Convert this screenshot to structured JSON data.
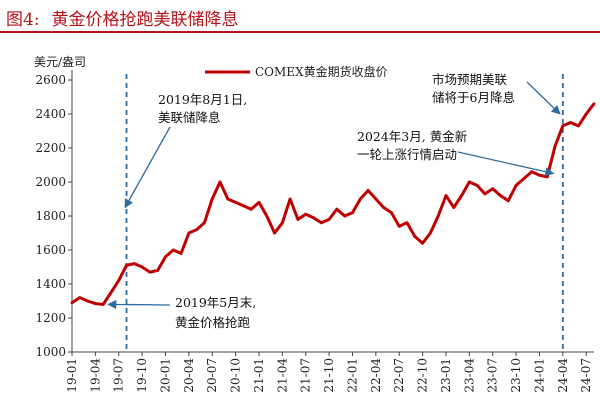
{
  "figure": {
    "number": "图4:",
    "title": "黄金价格抢跑美联储降息"
  },
  "chart_data": {
    "type": "line",
    "title": "黄金价格抢跑美联储降息",
    "ylabel": "美元/盎司",
    "xlabel": "",
    "ylim": [
      1000,
      2600
    ],
    "yticks": [
      1000,
      1200,
      1400,
      1600,
      1800,
      2000,
      2200,
      2400,
      2600
    ],
    "xlim": [
      "2019-01",
      "2024-08"
    ],
    "xtick_labels": [
      "19-01",
      "19-04",
      "19-07",
      "19-10",
      "20-01",
      "20-04",
      "20-07",
      "20-10",
      "21-01",
      "21-04",
      "21-07",
      "21-10",
      "22-01",
      "22-04",
      "22-07",
      "22-10",
      "23-01",
      "23-04",
      "23-07",
      "23-10",
      "24-01",
      "24-04",
      "24-07"
    ],
    "grid": false,
    "legend": "top-center",
    "series": [
      {
        "name": "COMEX黄金期货收盘价",
        "color": "#c00000",
        "x": [
          "2019-01",
          "2019-02",
          "2019-03",
          "2019-04",
          "2019-05",
          "2019-06",
          "2019-07",
          "2019-08",
          "2019-09",
          "2019-10",
          "2019-11",
          "2019-12",
          "2020-01",
          "2020-02",
          "2020-03",
          "2020-04",
          "2020-05",
          "2020-06",
          "2020-07",
          "2020-08",
          "2020-09",
          "2020-10",
          "2020-11",
          "2020-12",
          "2021-01",
          "2021-02",
          "2021-03",
          "2021-04",
          "2021-05",
          "2021-06",
          "2021-07",
          "2021-08",
          "2021-09",
          "2021-10",
          "2021-11",
          "2021-12",
          "2022-01",
          "2022-02",
          "2022-03",
          "2022-04",
          "2022-05",
          "2022-06",
          "2022-07",
          "2022-08",
          "2022-09",
          "2022-10",
          "2022-11",
          "2022-12",
          "2023-01",
          "2023-02",
          "2023-03",
          "2023-04",
          "2023-05",
          "2023-06",
          "2023-07",
          "2023-08",
          "2023-09",
          "2023-10",
          "2023-11",
          "2023-12",
          "2024-01",
          "2024-02",
          "2024-03",
          "2024-04",
          "2024-05",
          "2024-06",
          "2024-07",
          "2024-08"
        ],
        "values": [
          1290,
          1320,
          1300,
          1285,
          1280,
          1350,
          1420,
          1510,
          1520,
          1500,
          1470,
          1480,
          1560,
          1600,
          1580,
          1700,
          1720,
          1760,
          1900,
          2000,
          1900,
          1880,
          1860,
          1840,
          1880,
          1800,
          1700,
          1760,
          1900,
          1780,
          1810,
          1790,
          1760,
          1780,
          1840,
          1800,
          1820,
          1900,
          1950,
          1900,
          1850,
          1820,
          1740,
          1760,
          1680,
          1640,
          1700,
          1800,
          1920,
          1850,
          1920,
          2000,
          1980,
          1930,
          1960,
          1920,
          1890,
          1980,
          2020,
          2060,
          2040,
          2030,
          2210,
          2330,
          2350,
          2330,
          2400,
          2460
        ]
      }
    ],
    "annotations": [
      {
        "text": [
          "2019年8月1日,",
          "美联储降息"
        ],
        "target": [
          "2019-07-25",
          1850
        ]
      },
      {
        "text": [
          "2019年5月末,",
          "黄金价格抢跑"
        ],
        "target": [
          "2019-05-20",
          1280
        ]
      },
      {
        "text": [
          "2024年3月, 黄金新",
          "一轮上涨行情启动"
        ],
        "target": [
          "2024-02-25",
          2050
        ]
      },
      {
        "text": [
          "市场预期美联",
          "储将于6月降息"
        ],
        "target": [
          "2024-03-20",
          2400
        ]
      }
    ],
    "reference_lines": [
      {
        "x": "2019-07-31",
        "style": "dashed",
        "color": "#2e6b9e"
      },
      {
        "x": "2024-03-31",
        "style": "dashed",
        "color": "#2e6b9e"
      }
    ]
  }
}
